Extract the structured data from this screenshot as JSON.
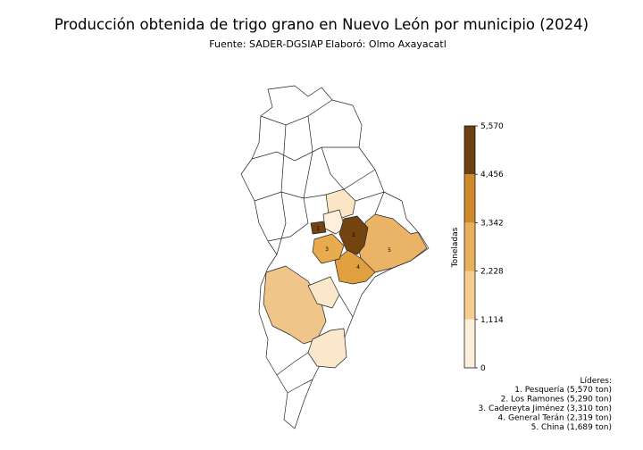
{
  "title": "Producción obtenida de trigo grano en Nuevo León por municipio (2024)",
  "subtitle": {
    "source": "Fuente: SADER-DGSIAP",
    "author": "Elaboró: Olmo Axayacatl"
  },
  "map_labels": [
    "1",
    "2",
    "3",
    "4",
    "5"
  ],
  "colorbar": {
    "label": "Toneladas",
    "lim": [
      0,
      5570
    ],
    "ticks": [
      0,
      {
        "value": 1114,
        "label": "1,114"
      },
      {
        "value": 2228,
        "label": "2,228"
      },
      {
        "value": 3342,
        "label": "3,342"
      },
      {
        "value": 4456,
        "label": "4,456"
      },
      {
        "value": 5570,
        "label": "5,570"
      }
    ],
    "colors": [
      "#fcefdc",
      "#f4cd93",
      "#e8b05c",
      "#cf8a2c",
      "#6b4114"
    ]
  },
  "leaders": {
    "title": "Líderes:",
    "items": [
      "1. Pesquería (5,570 ton)",
      "2. Los Ramones (5,290 ton)",
      "3. Cadereyta Jiménez (3,310 ton)",
      "4. General Terán (2,319 ton)",
      "5. China (1,689 ton)"
    ]
  }
}
